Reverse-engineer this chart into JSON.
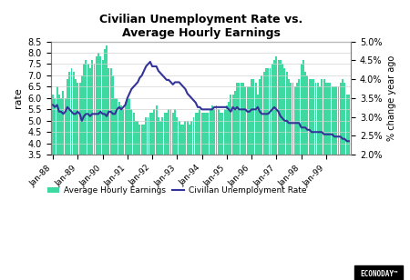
{
  "title": "Civilian Unemployment Rate vs.\nAverage Hourly Earnings",
  "left_ylabel": "rate",
  "right_ylabel": "% change year ago",
  "left_ylim": [
    3.5,
    8.5
  ],
  "right_ylim": [
    2.0,
    5.0
  ],
  "xtick_labels": [
    "Jan-88",
    "Jan-89",
    "Jan-90",
    "Jan-91",
    "Jan-92",
    "Jan-93",
    "Jan-94",
    "Jan-95",
    "Jan-96",
    "Jan-97",
    "Jan-98",
    "Jan-99"
  ],
  "bar_color": "#3ED9A0",
  "line_color": "#333399",
  "background_color": "#FFFFFF",
  "unemployment_rate": [
    5.7,
    5.6,
    5.7,
    5.4,
    5.4,
    5.3,
    5.4,
    5.6,
    5.5,
    5.4,
    5.3,
    5.3,
    5.4,
    5.3,
    5.0,
    5.2,
    5.3,
    5.3,
    5.2,
    5.3,
    5.3,
    5.3,
    5.3,
    5.4,
    5.3,
    5.3,
    5.2,
    5.4,
    5.4,
    5.3,
    5.3,
    5.5,
    5.6,
    5.5,
    5.6,
    5.7,
    6.0,
    6.2,
    6.4,
    6.5,
    6.6,
    6.7,
    6.9,
    7.0,
    7.2,
    7.4,
    7.5,
    7.6,
    7.4,
    7.4,
    7.4,
    7.2,
    7.1,
    7.0,
    6.9,
    6.8,
    6.8,
    6.7,
    6.6,
    6.7,
    6.7,
    6.7,
    6.6,
    6.5,
    6.4,
    6.2,
    6.1,
    6.0,
    5.9,
    5.8,
    5.6,
    5.6,
    5.5,
    5.5,
    5.5,
    5.5,
    5.5,
    5.5,
    5.6,
    5.6,
    5.6,
    5.6,
    5.6,
    5.6,
    5.6,
    5.5,
    5.4,
    5.6,
    5.5,
    5.6,
    5.5,
    5.5,
    5.5,
    5.5,
    5.4,
    5.4,
    5.5,
    5.5,
    5.5,
    5.6,
    5.4,
    5.3,
    5.3,
    5.3,
    5.3,
    5.4,
    5.5,
    5.6,
    5.5,
    5.4,
    5.2,
    5.1,
    5.0,
    5.0,
    4.9,
    4.9,
    4.9,
    4.9,
    4.9,
    4.9,
    4.7,
    4.7,
    4.7,
    4.6,
    4.6,
    4.5,
    4.5,
    4.5,
    4.5,
    4.5,
    4.5,
    4.4,
    4.4,
    4.4,
    4.4,
    4.4,
    4.3,
    4.3,
    4.3,
    4.3,
    4.2,
    4.2,
    4.1,
    4.1
  ],
  "avg_hourly_earnings": [
    3.6,
    3.5,
    3.8,
    3.6,
    3.5,
    3.7,
    3.5,
    4.0,
    4.2,
    4.3,
    4.2,
    4.0,
    3.9,
    3.9,
    4.1,
    4.4,
    4.5,
    4.4,
    4.3,
    4.5,
    4.4,
    4.6,
    4.7,
    4.6,
    4.5,
    4.8,
    4.9,
    4.3,
    4.3,
    4.1,
    3.5,
    3.5,
    3.4,
    3.3,
    3.2,
    3.4,
    3.5,
    3.5,
    3.2,
    3.1,
    2.9,
    2.9,
    2.8,
    2.8,
    2.8,
    3.0,
    3.0,
    3.1,
    3.1,
    3.2,
    3.3,
    3.0,
    2.9,
    3.0,
    3.1,
    3.1,
    3.2,
    3.2,
    3.1,
    3.2,
    3.0,
    2.9,
    2.8,
    2.8,
    2.9,
    2.9,
    2.8,
    2.9,
    3.0,
    3.1,
    3.1,
    3.2,
    3.1,
    3.1,
    3.1,
    3.1,
    3.2,
    3.3,
    3.2,
    3.3,
    3.2,
    3.1,
    3.1,
    3.2,
    3.3,
    3.4,
    3.6,
    3.6,
    3.7,
    3.9,
    3.9,
    3.9,
    3.9,
    3.8,
    3.8,
    3.8,
    4.0,
    4.0,
    3.9,
    3.6,
    4.0,
    4.1,
    4.2,
    4.3,
    4.3,
    4.3,
    4.4,
    4.5,
    4.6,
    4.5,
    4.5,
    4.4,
    4.3,
    4.2,
    4.0,
    3.9,
    3.9,
    3.8,
    3.9,
    4.0,
    4.4,
    4.5,
    4.2,
    4.1,
    4.0,
    4.0,
    4.0,
    3.9,
    3.9,
    3.8,
    4.0,
    4.0,
    3.9,
    3.9,
    3.9,
    3.8,
    3.8,
    3.8,
    3.8,
    3.9,
    4.0,
    3.9,
    3.6,
    3.6
  ],
  "n_months": 144,
  "left_yticks": [
    3.5,
    4.0,
    4.5,
    5.0,
    5.5,
    6.0,
    6.5,
    7.0,
    7.5,
    8.0,
    8.5
  ],
  "right_yticks": [
    2.0,
    2.5,
    3.0,
    3.5,
    4.0,
    4.5,
    5.0
  ]
}
